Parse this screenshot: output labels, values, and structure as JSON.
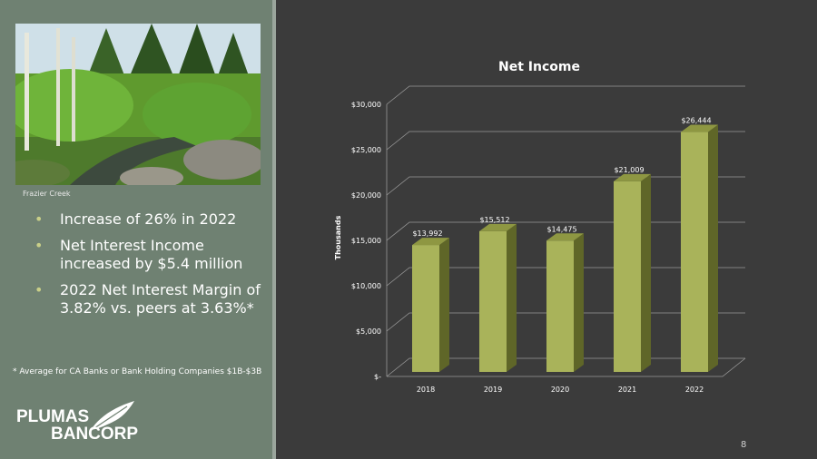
{
  "sidebar": {
    "photo_caption": "Frazier Creek",
    "bullets": [
      "Increase of 26% in 2022",
      "Net Interest Income increased by $5.4 million",
      "2022 Net Interest Margin of 3.82% vs. peers at 3.63%*"
    ],
    "footnote": "* Average for CA Banks or Bank Holding Companies $1B-$3B",
    "logo_line1": "PLUMAS",
    "logo_line2": "BANCORP"
  },
  "page_number": "8",
  "colors": {
    "bar": "#a9b35a",
    "bar_top": "#8e9742",
    "bar_side": "#5f6628",
    "background": "#3b3b3b",
    "panel": "#6f8172"
  },
  "chart_data": {
    "type": "bar",
    "title": "Net Income",
    "ylabel": "Thousands",
    "categories": [
      "2018",
      "2019",
      "2020",
      "2021",
      "2022"
    ],
    "values": [
      13992,
      15512,
      14475,
      21009,
      26444
    ],
    "value_labels": [
      "$13,992",
      "$15,512",
      "$14,475",
      "$21,009",
      "$26,444"
    ],
    "yticks": [
      "$-",
      "$5,000",
      "$10,000",
      "$15,000",
      "$20,000",
      "$25,000",
      "$30,000"
    ],
    "ylim": [
      0,
      30000
    ],
    "grid": true
  }
}
